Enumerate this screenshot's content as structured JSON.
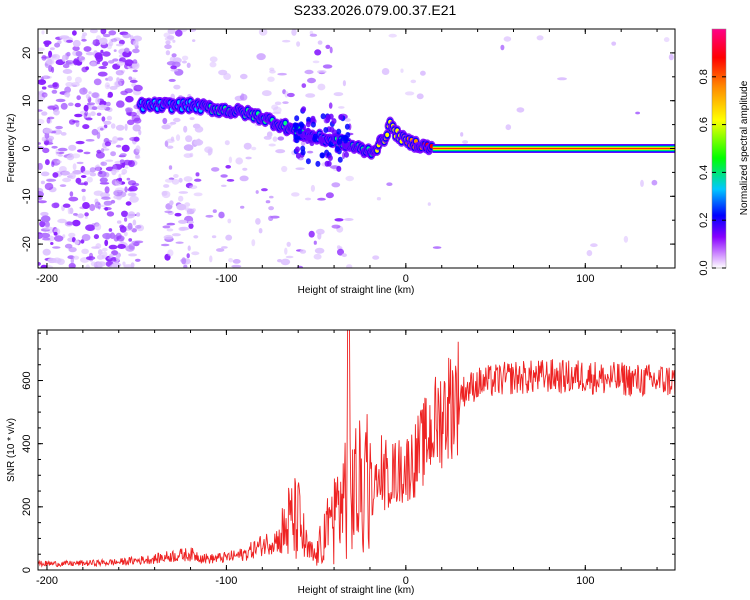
{
  "title": "S233.2026.079.00.37.E21",
  "chart_data": [
    {
      "type": "heatmap",
      "name": "spectrogram",
      "xlabel": "Height of straight line (km)",
      "ylabel": "Frequency (Hz)",
      "xlim": [
        -205,
        150
      ],
      "ylim": [
        -25,
        25
      ],
      "xticks": [
        -200,
        -100,
        0,
        100
      ],
      "xtick_labels": [
        "-200",
        "-100",
        "0",
        "100"
      ],
      "yticks": [
        -20,
        -10,
        0,
        10,
        20
      ],
      "ytick_labels": [
        "-20",
        "-10",
        "0",
        "10",
        "20"
      ],
      "colorbar": {
        "label": "Normalized spectral amplitude",
        "range": [
          0,
          1
        ],
        "ticks": [
          0,
          0.2,
          0.4,
          0.6,
          0.8
        ],
        "tick_labels": [
          "0.0",
          "0.2",
          "0.4",
          "0.6",
          "0.8"
        ],
        "colors": [
          "#ffffff",
          "#cc88ff",
          "#8800ff",
          "#0000ff",
          "#00c8ff",
          "#00ff00",
          "#ffff00",
          "#ff8800",
          "#ff0000",
          "#ff0088"
        ]
      },
      "ridge": {
        "x": [
          -145,
          -130,
          -120,
          -110,
          -100,
          -90,
          -80,
          -70,
          -60,
          -52,
          -45,
          -38,
          -30,
          -22,
          -18,
          -12,
          -9,
          -5,
          0,
          5,
          10,
          15,
          50,
          100,
          150
        ],
        "frequency": [
          9,
          9,
          9,
          8.5,
          8,
          7.5,
          6.5,
          5,
          3.5,
          2.5,
          2,
          1.5,
          0.5,
          -0.5,
          -0.5,
          2,
          5,
          3,
          1.5,
          1,
          0.5,
          0,
          0,
          0,
          0
        ],
        "amplitude": [
          0.3,
          0.3,
          0.3,
          0.35,
          0.35,
          0.4,
          0.4,
          0.4,
          0.35,
          0.3,
          0.3,
          0.35,
          0.4,
          0.45,
          0.5,
          0.5,
          0.5,
          0.6,
          0.7,
          0.8,
          0.85,
          0.95,
          0.95,
          0.95,
          0.95
        ]
      }
    },
    {
      "type": "line",
      "name": "snr",
      "xlabel": "Height of straight line (km)",
      "ylabel": "SNR (10 * v/v)",
      "xlim": [
        -205,
        150
      ],
      "ylim": [
        0,
        760
      ],
      "xticks": [
        -200,
        -100,
        0,
        100
      ],
      "xtick_labels": [
        "-200",
        "-100",
        "0",
        "100"
      ],
      "yticks": [
        0,
        200,
        400,
        600
      ],
      "ytick_labels": [
        "0",
        "200",
        "400",
        "600"
      ],
      "color": "#ee2222",
      "series": [
        {
          "name": "SNR",
          "x": [
            -205,
            -190,
            -175,
            -160,
            -150,
            -140,
            -130,
            -120,
            -110,
            -100,
            -90,
            -80,
            -70,
            -65,
            -60,
            -55,
            -50,
            -45,
            -40,
            -35,
            -32,
            -30,
            -25,
            -20,
            -15,
            -10,
            -5,
            0,
            5,
            10,
            15,
            20,
            25,
            30,
            40,
            50,
            60,
            70,
            80,
            90,
            100,
            110,
            120,
            130,
            140,
            150
          ],
          "y": [
            20,
            20,
            22,
            25,
            30,
            35,
            45,
            50,
            35,
            40,
            50,
            80,
            100,
            150,
            160,
            60,
            40,
            120,
            170,
            230,
            260,
            260,
            250,
            260,
            270,
            300,
            310,
            320,
            350,
            400,
            450,
            490,
            530,
            560,
            590,
            600,
            610,
            610,
            615,
            610,
            615,
            605,
            605,
            600,
            600,
            600
          ]
        }
      ],
      "peak": {
        "x": -32,
        "y": 760
      }
    }
  ]
}
